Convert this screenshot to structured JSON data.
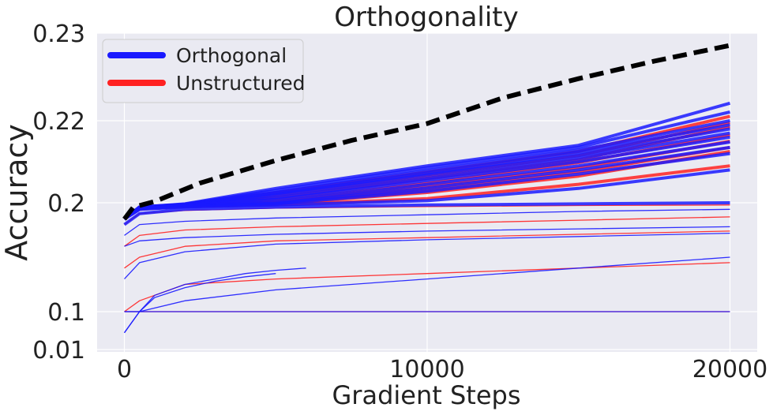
{
  "chart_data": {
    "type": "line",
    "title": "Orthogonality",
    "xlabel": "Gradient Steps",
    "ylabel": "Accuracy",
    "xlim": [
      -900,
      20900
    ],
    "x_ticks": [
      0,
      10000,
      20000
    ],
    "x_tick_labels": [
      "0",
      "10000",
      "20000"
    ],
    "y_ticks": [
      0.01,
      0.1,
      0.2,
      0.22,
      0.23
    ],
    "y_tick_labels": [
      "0.01",
      "0.1",
      "0.2",
      "0.22",
      "0.23"
    ],
    "y_scale": "nonuniform (ticks spaced as shown)",
    "grid": true,
    "legend_position": "top-left",
    "legend": [
      {
        "label": "Orthogonal",
        "color": "#1a1aff"
      },
      {
        "label": "Unstructured",
        "color": "#ff2222"
      }
    ],
    "colors": {
      "background": "#eaeaf2",
      "grid": "#ffffff",
      "orthogonal": "#1a1aff",
      "unstructured": "#ff2222",
      "reference": "#000000"
    },
    "reference_line": {
      "style": "dashed",
      "x": [
        0,
        300,
        1000,
        2500,
        5000,
        7500,
        10000,
        12500,
        15000,
        17500,
        20000
      ],
      "y": [
        0.185,
        0.196,
        0.2003,
        0.2048,
        0.2103,
        0.2152,
        0.2193,
        0.2226,
        0.2248,
        0.2268,
        0.2286
      ]
    },
    "series": [
      {
        "group": "Unstructured",
        "x": [
          0,
          500,
          2000,
          5000,
          10000,
          15000,
          20000
        ],
        "y": [
          0.185,
          0.196,
          0.1985,
          0.2025,
          0.2075,
          0.2125,
          0.2205
        ]
      },
      {
        "group": "Unstructured",
        "x": [
          0,
          500,
          2000,
          5000,
          10000,
          15000,
          20000
        ],
        "y": [
          0.185,
          0.196,
          0.1982,
          0.2018,
          0.2065,
          0.2115,
          0.2195
        ]
      },
      {
        "group": "Unstructured",
        "x": [
          0,
          500,
          2000,
          5000,
          10000,
          15000,
          20000
        ],
        "y": [
          0.185,
          0.196,
          0.198,
          0.2012,
          0.2058,
          0.2105,
          0.2185
        ]
      },
      {
        "group": "Unstructured",
        "x": [
          0,
          500,
          2000,
          5000,
          10000,
          15000,
          20000
        ],
        "y": [
          0.185,
          0.195,
          0.1978,
          0.2005,
          0.2048,
          0.2098,
          0.2165
        ]
      },
      {
        "group": "Unstructured",
        "x": [
          0,
          500,
          2000,
          5000,
          10000,
          15000,
          20000
        ],
        "y": [
          0.185,
          0.195,
          0.1975,
          0.2,
          0.204,
          0.2085,
          0.215
        ]
      },
      {
        "group": "Unstructured",
        "x": [
          0,
          500,
          2000,
          5000,
          10000,
          15000,
          20000
        ],
        "y": [
          0.185,
          0.195,
          0.1972,
          0.1995,
          0.2032,
          0.2075,
          0.2135
        ]
      },
      {
        "group": "Unstructured",
        "x": [
          0,
          500,
          2000,
          5000,
          10000,
          15000,
          20000
        ],
        "y": [
          0.185,
          0.195,
          0.197,
          0.199,
          0.2025,
          0.2065,
          0.2125
        ]
      },
      {
        "group": "Unstructured",
        "x": [
          0,
          500,
          2000,
          5000,
          10000,
          15000,
          20000
        ],
        "y": [
          0.185,
          0.194,
          0.1965,
          0.198,
          0.201,
          0.2045,
          0.209
        ]
      },
      {
        "group": "Orthogonal",
        "x": [
          0,
          500,
          2000,
          5000,
          10000,
          15000,
          20000
        ],
        "y": [
          0.185,
          0.196,
          0.199,
          0.2035,
          0.209,
          0.214,
          0.222
        ]
      },
      {
        "group": "Orthogonal",
        "x": [
          0,
          500,
          2000,
          5000,
          10000,
          15000,
          20000
        ],
        "y": [
          0.185,
          0.196,
          0.1988,
          0.203,
          0.2085,
          0.2135,
          0.221
        ]
      },
      {
        "group": "Orthogonal",
        "x": [
          0,
          500,
          2000,
          5000,
          10000,
          15000,
          20000
        ],
        "y": [
          0.185,
          0.196,
          0.1985,
          0.2025,
          0.2078,
          0.2128,
          0.22
        ]
      },
      {
        "group": "Orthogonal",
        "x": [
          0,
          500,
          2000,
          5000,
          10000,
          15000,
          20000
        ],
        "y": [
          0.185,
          0.196,
          0.1984,
          0.2022,
          0.2072,
          0.2122,
          0.219
        ]
      },
      {
        "group": "Orthogonal",
        "x": [
          0,
          500,
          2000,
          5000,
          10000,
          15000,
          20000
        ],
        "y": [
          0.185,
          0.196,
          0.1982,
          0.2018,
          0.2068,
          0.2115,
          0.218
        ]
      },
      {
        "group": "Orthogonal",
        "x": [
          0,
          500,
          2000,
          5000,
          10000,
          15000,
          20000
        ],
        "y": [
          0.185,
          0.195,
          0.198,
          0.2012,
          0.206,
          0.2108,
          0.217
        ]
      },
      {
        "group": "Orthogonal",
        "x": [
          0,
          500,
          2000,
          5000,
          10000,
          15000,
          20000
        ],
        "y": [
          0.185,
          0.195,
          0.1978,
          0.2008,
          0.2054,
          0.21,
          0.216
        ]
      },
      {
        "group": "Orthogonal",
        "x": [
          0,
          500,
          2000,
          5000,
          10000,
          15000,
          20000
        ],
        "y": [
          0.185,
          0.195,
          0.1975,
          0.2002,
          0.2045,
          0.209,
          0.2148
        ]
      },
      {
        "group": "Orthogonal",
        "x": [
          0,
          500,
          2000,
          5000,
          10000,
          15000,
          20000
        ],
        "y": [
          0.185,
          0.195,
          0.1972,
          0.1996,
          0.2036,
          0.208,
          0.2135
        ]
      },
      {
        "group": "Orthogonal",
        "x": [
          0,
          500,
          2000,
          5000,
          10000,
          15000,
          20000
        ],
        "y": [
          0.185,
          0.194,
          0.1968,
          0.199,
          0.2028,
          0.207,
          0.212
        ]
      },
      {
        "group": "Orthogonal",
        "x": [
          0,
          500,
          2000,
          5000,
          10000,
          15000,
          20000
        ],
        "y": [
          0.185,
          0.194,
          0.1962,
          0.198,
          0.2005,
          0.2035,
          0.208
        ]
      },
      {
        "group": "Orthogonal",
        "x": [
          0,
          500,
          2000,
          5000,
          10000,
          15000,
          20000
        ],
        "y": [
          0.18,
          0.19,
          0.194,
          0.196,
          0.198,
          0.199,
          0.2
        ]
      },
      {
        "group": "Unstructured",
        "x": [
          0,
          500,
          2000,
          5000,
          10000,
          15000,
          20000
        ],
        "y": [
          0.18,
          0.19,
          0.193,
          0.195,
          0.1965,
          0.1975,
          0.198
        ]
      },
      {
        "group": "Orthogonal",
        "x": [
          0,
          500,
          2000,
          5000,
          10000,
          15000,
          20000
        ],
        "y": [
          0.17,
          0.18,
          0.183,
          0.186,
          0.189,
          0.192,
          0.194
        ]
      },
      {
        "group": "Unstructured",
        "x": [
          0,
          500,
          2000,
          5000,
          10000,
          15000,
          20000
        ],
        "y": [
          0.16,
          0.17,
          0.175,
          0.178,
          0.181,
          0.184,
          0.187
        ]
      },
      {
        "group": "Orthogonal",
        "x": [
          0,
          500,
          2000,
          5000,
          10000,
          15000,
          20000
        ],
        "y": [
          0.16,
          0.165,
          0.168,
          0.171,
          0.174,
          0.176,
          0.178
        ]
      },
      {
        "group": "Unstructured",
        "x": [
          0,
          500,
          2000,
          5000,
          10000,
          15000,
          20000
        ],
        "y": [
          0.14,
          0.15,
          0.16,
          0.165,
          0.168,
          0.171,
          0.174
        ]
      },
      {
        "group": "Orthogonal",
        "x": [
          0,
          500,
          2000,
          5000,
          10000,
          15000,
          20000
        ],
        "y": [
          0.13,
          0.145,
          0.155,
          0.162,
          0.166,
          0.169,
          0.172
        ]
      },
      {
        "group": "Orthogonal",
        "x": [
          0,
          500,
          2000,
          5000,
          10000,
          15000,
          20000
        ],
        "y": [
          0.1,
          0.1,
          0.11,
          0.12,
          0.13,
          0.14,
          0.15
        ]
      },
      {
        "group": "Unstructured",
        "x": [
          0,
          500,
          2000,
          5000,
          10000,
          15000,
          20000
        ],
        "y": [
          0.1,
          0.11,
          0.125,
          0.13,
          0.135,
          0.14,
          0.145
        ]
      },
      {
        "group": "Unstructured",
        "x": [
          0,
          500,
          2000,
          5000,
          10000,
          15000,
          20000
        ],
        "y": [
          0.1,
          0.1,
          0.1,
          0.1,
          0.1,
          0.1,
          0.1
        ]
      },
      {
        "group": "Orthogonal",
        "x": [
          0,
          500,
          2000,
          5000,
          10000,
          15000,
          20000
        ],
        "y": [
          0.1,
          0.1,
          0.1,
          0.1,
          0.1,
          0.1,
          0.1
        ]
      },
      {
        "group": "Orthogonal",
        "x": [
          0,
          500,
          1000,
          2000,
          3000,
          4000,
          5000,
          6000
        ],
        "y": [
          0.05,
          0.1,
          0.115,
          0.125,
          0.13,
          0.135,
          0.138,
          0.14
        ]
      },
      {
        "group": "Orthogonal",
        "x": [
          0,
          500,
          1000,
          2000,
          3000,
          4000,
          5000
        ],
        "y": [
          0.05,
          0.1,
          0.113,
          0.122,
          0.128,
          0.132,
          0.135
        ]
      }
    ]
  }
}
